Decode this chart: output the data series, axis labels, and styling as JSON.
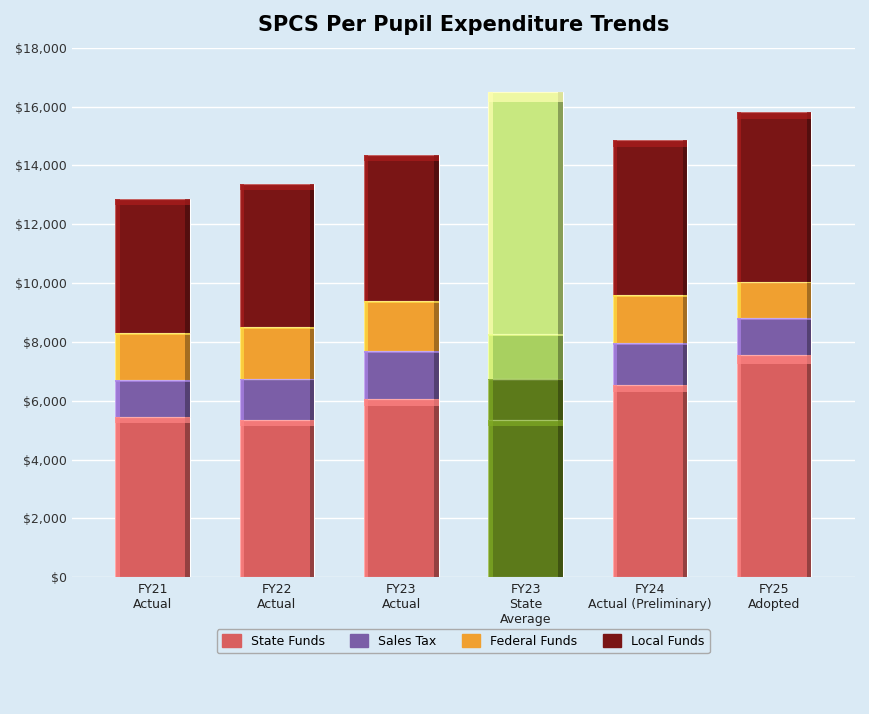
{
  "title": "SPCS Per Pupil Expenditure Trends",
  "categories": [
    "FY21\nActual",
    "FY22\nActual",
    "FY23\nActual",
    "FY23\nState\nAverage",
    "FY24\nActual (Preliminary)",
    "FY25\nAdopted"
  ],
  "segments": {
    "State Funds": [
      5450,
      5350,
      6050,
      5350,
      6550,
      7550
    ],
    "Sales Tax": [
      1250,
      1400,
      1650,
      1400,
      1400,
      1250
    ],
    "Federal Funds": [
      1600,
      1750,
      1700,
      1500,
      1650,
      1250
    ],
    "Local Funds": [
      4550,
      4850,
      4950,
      8250,
      5250,
      5750
    ]
  },
  "normal_colors": {
    "State Funds": "#D95F5F",
    "Sales Tax": "#7B5EA7",
    "Federal Funds": "#F0A030",
    "Local Funds": "#7A1515"
  },
  "state_avg_colors": [
    "#5C7A1A",
    "#5C7A1A",
    "#A8D060",
    "#C8E880"
  ],
  "legend_colors": {
    "State Funds": "#D95F5F",
    "Sales Tax": "#7B5EA7",
    "Federal Funds": "#F0A030",
    "Local Funds": "#7A1515"
  },
  "ylim": [
    0,
    18000
  ],
  "yticks": [
    0,
    2000,
    4000,
    6000,
    8000,
    10000,
    12000,
    14000,
    16000,
    18000
  ],
  "background_color": "#DAEAF5",
  "title_fontsize": 15,
  "bar_width": 0.6
}
